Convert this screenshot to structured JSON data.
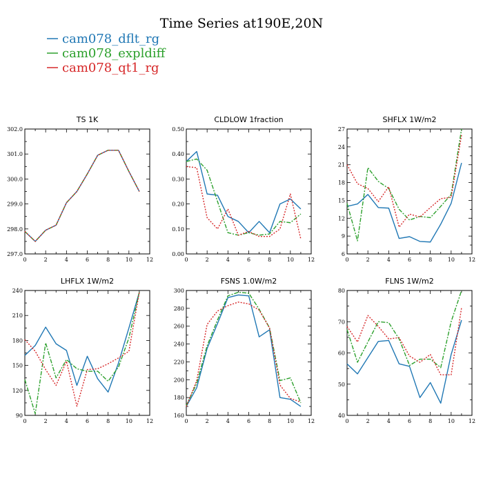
{
  "figure": {
    "title": "Time Series at190E,20N"
  },
  "legend": [
    {
      "name": "cam078_dflt_rg",
      "color": "#1f77b4",
      "dash": "solid"
    },
    {
      "name": "cam078_expldiff",
      "color": "#2ca02c",
      "dash": "dashdot"
    },
    {
      "name": "cam078_qt1_rg",
      "color": "#d62728",
      "dash": "dot"
    }
  ],
  "chart_data": [
    {
      "type": "line",
      "title": "TS   1K",
      "xlim": [
        0,
        12
      ],
      "ylim": [
        297.0,
        302.0
      ],
      "xticks": [
        0,
        2,
        4,
        6,
        8,
        10,
        12
      ],
      "yticks": [
        "297.0",
        "298.0",
        "299.0",
        "300.0",
        "301.0",
        "302.0"
      ],
      "x": [
        0,
        1,
        2,
        3,
        4,
        5,
        6,
        7,
        8,
        9,
        10,
        11
      ],
      "series": [
        {
          "name": "cam078_dflt_rg",
          "values": [
            297.9,
            297.5,
            297.95,
            298.15,
            299.05,
            299.5,
            300.2,
            300.95,
            301.15,
            301.15,
            300.3,
            299.5
          ]
        },
        {
          "name": "cam078_expldiff",
          "values": [
            297.9,
            297.5,
            297.95,
            298.15,
            299.05,
            299.5,
            300.2,
            300.95,
            301.15,
            301.15,
            300.3,
            299.5
          ]
        },
        {
          "name": "cam078_qt1_rg",
          "values": [
            297.9,
            297.5,
            297.95,
            298.15,
            299.05,
            299.5,
            300.2,
            300.95,
            301.15,
            301.15,
            300.3,
            299.5
          ]
        }
      ]
    },
    {
      "type": "line",
      "title": "CLDLOW   1fraction",
      "xlim": [
        0,
        12
      ],
      "ylim": [
        0.0,
        0.5
      ],
      "xticks": [
        0,
        2,
        4,
        6,
        8,
        10,
        12
      ],
      "yticks": [
        "0.00",
        "0.10",
        "0.20",
        "0.30",
        "0.40",
        "0.50"
      ],
      "x": [
        0,
        1,
        2,
        3,
        4,
        5,
        6,
        7,
        8,
        9,
        10,
        11
      ],
      "series": [
        {
          "name": "cam078_dflt_rg",
          "values": [
            0.37,
            0.41,
            0.24,
            0.235,
            0.15,
            0.13,
            0.085,
            0.13,
            0.085,
            0.2,
            0.22,
            0.18
          ]
        },
        {
          "name": "cam078_expldiff",
          "values": [
            0.37,
            0.38,
            0.335,
            0.21,
            0.085,
            0.075,
            0.085,
            0.075,
            0.08,
            0.13,
            0.125,
            0.16
          ]
        },
        {
          "name": "cam078_qt1_rg",
          "values": [
            0.35,
            0.345,
            0.145,
            0.1,
            0.18,
            0.075,
            0.09,
            0.07,
            0.07,
            0.1,
            0.24,
            0.06
          ]
        }
      ]
    },
    {
      "type": "line",
      "title": "SHFLX   1W/m2",
      "xlim": [
        0,
        12
      ],
      "ylim": [
        6,
        27
      ],
      "xticks": [
        0,
        2,
        4,
        6,
        8,
        10,
        12
      ],
      "yticks": [
        "6",
        "9",
        "12",
        "15",
        "18",
        "21",
        "24",
        "27"
      ],
      "x": [
        0,
        1,
        2,
        3,
        4,
        5,
        6,
        7,
        8,
        9,
        10,
        11
      ],
      "series": [
        {
          "name": "cam078_dflt_rg",
          "values": [
            14.0,
            14.4,
            16.0,
            13.8,
            13.7,
            8.6,
            8.9,
            8.1,
            8.0,
            11.0,
            14.5,
            21.3
          ]
        },
        {
          "name": "cam078_expldiff",
          "values": [
            14.5,
            8.2,
            20.5,
            18.2,
            17.0,
            13.5,
            11.7,
            12.3,
            12.1,
            14.0,
            16.0,
            27.0
          ]
        },
        {
          "name": "cam078_qt1_rg",
          "values": [
            21.0,
            17.8,
            17.0,
            14.8,
            17.3,
            10.5,
            12.7,
            12.2,
            13.8,
            15.3,
            15.5,
            26.0
          ]
        }
      ]
    },
    {
      "type": "line",
      "title": "LHFLX   1W/m2",
      "xlim": [
        0,
        12
      ],
      "ylim": [
        90,
        240
      ],
      "xticks": [
        0,
        2,
        4,
        6,
        8,
        10,
        12
      ],
      "yticks": [
        "90",
        "120",
        "150",
        "180",
        "210",
        "240"
      ],
      "x": [
        0,
        1,
        2,
        3,
        4,
        5,
        6,
        7,
        8,
        9,
        10,
        11
      ],
      "series": [
        {
          "name": "cam078_dflt_rg",
          "values": [
            162,
            174,
            196,
            176,
            168,
            126,
            161,
            134,
            118,
            153,
            195,
            238
          ]
        },
        {
          "name": "cam078_expldiff",
          "values": [
            133,
            92,
            177,
            135,
            157,
            146,
            143,
            143,
            131,
            148,
            183,
            238
          ]
        },
        {
          "name": "cam078_qt1_rg",
          "values": [
            181,
            167,
            145,
            126,
            155,
            101,
            145,
            146,
            152,
            159,
            167,
            238
          ]
        }
      ]
    },
    {
      "type": "line",
      "title": "FSNS   1.0W/m2",
      "xlim": [
        0,
        12
      ],
      "ylim": [
        160,
        300
      ],
      "xticks": [
        0,
        2,
        4,
        6,
        8,
        10,
        12
      ],
      "yticks": [
        "160",
        "180",
        "200",
        "220",
        "240",
        "260",
        "280",
        "300"
      ],
      "x": [
        0,
        1,
        2,
        3,
        4,
        5,
        6,
        7,
        8,
        9,
        10,
        11
      ],
      "series": [
        {
          "name": "cam078_dflt_rg",
          "values": [
            170,
            191,
            235,
            263,
            292,
            295,
            294,
            248,
            256,
            180,
            178,
            170
          ]
        },
        {
          "name": "cam078_expldiff",
          "values": [
            171,
            196,
            238,
            267,
            294,
            298,
            297,
            279,
            258,
            199,
            202,
            174
          ]
        },
        {
          "name": "cam078_qt1_rg",
          "values": [
            170,
            199,
            262,
            277,
            283,
            287,
            285,
            278,
            258,
            194,
            179,
            175
          ]
        }
      ]
    },
    {
      "type": "line",
      "title": "FLNS   1W/m2",
      "xlim": [
        0,
        12
      ],
      "ylim": [
        40,
        80
      ],
      "xticks": [
        0,
        2,
        4,
        6,
        8,
        10,
        12
      ],
      "yticks": [
        "40",
        "50",
        "60",
        "70",
        "80"
      ],
      "x": [
        0,
        1,
        2,
        3,
        4,
        5,
        6,
        7,
        8,
        9,
        10,
        11
      ],
      "series": [
        {
          "name": "cam078_dflt_rg",
          "values": [
            56.5,
            53.3,
            58.5,
            63.7,
            64.0,
            56.5,
            55.7,
            45.7,
            50.5,
            43.9,
            59.5,
            70.5
          ]
        },
        {
          "name": "cam078_expldiff",
          "values": [
            67.5,
            57.0,
            63.5,
            70.0,
            69.7,
            64.5,
            56.0,
            58.0,
            58.0,
            55.3,
            70.0,
            80.0
          ]
        },
        {
          "name": "cam078_qt1_rg",
          "values": [
            68.5,
            63.5,
            72.0,
            68.5,
            64.5,
            64.9,
            59.0,
            57.0,
            59.5,
            53.0,
            53.0,
            74.5
          ]
        }
      ]
    }
  ]
}
